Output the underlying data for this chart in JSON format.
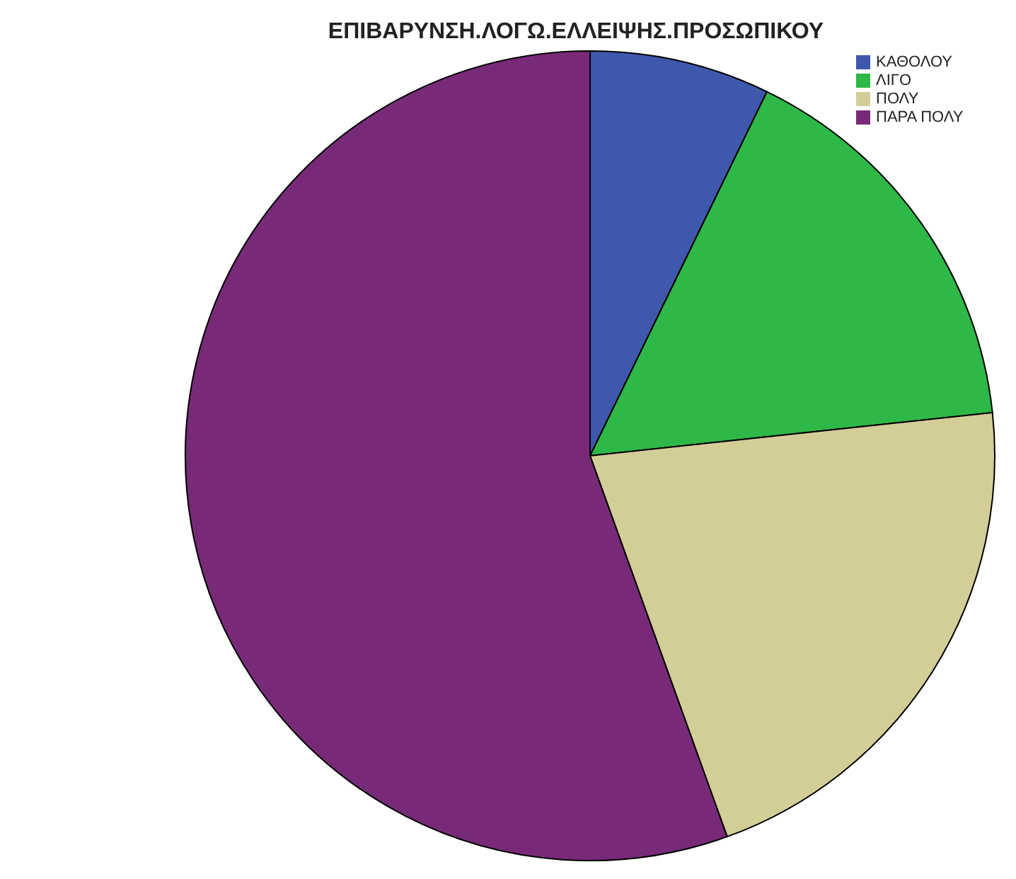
{
  "chart_data": {
    "type": "pie",
    "title": "ΕΠΙΒΑΡΥΝΣΗ.ΛΟΓΩ.ΕΛΛΕΙΨΗΣ.ΠΡΟΣΩΠΙΚΟΥ",
    "categories": [
      "ΚΑΘΟΛΟΥ",
      "ΛΙΓΟ",
      "ΠΟΛΥ",
      "ΠΑΡΑ ΠΟΛΥ"
    ],
    "values": [
      7.2,
      16.1,
      21.2,
      55.5
    ],
    "colors": [
      "#3e58ac",
      "#2eb848",
      "#d3ce97",
      "#782a78"
    ],
    "legend": "top right"
  }
}
